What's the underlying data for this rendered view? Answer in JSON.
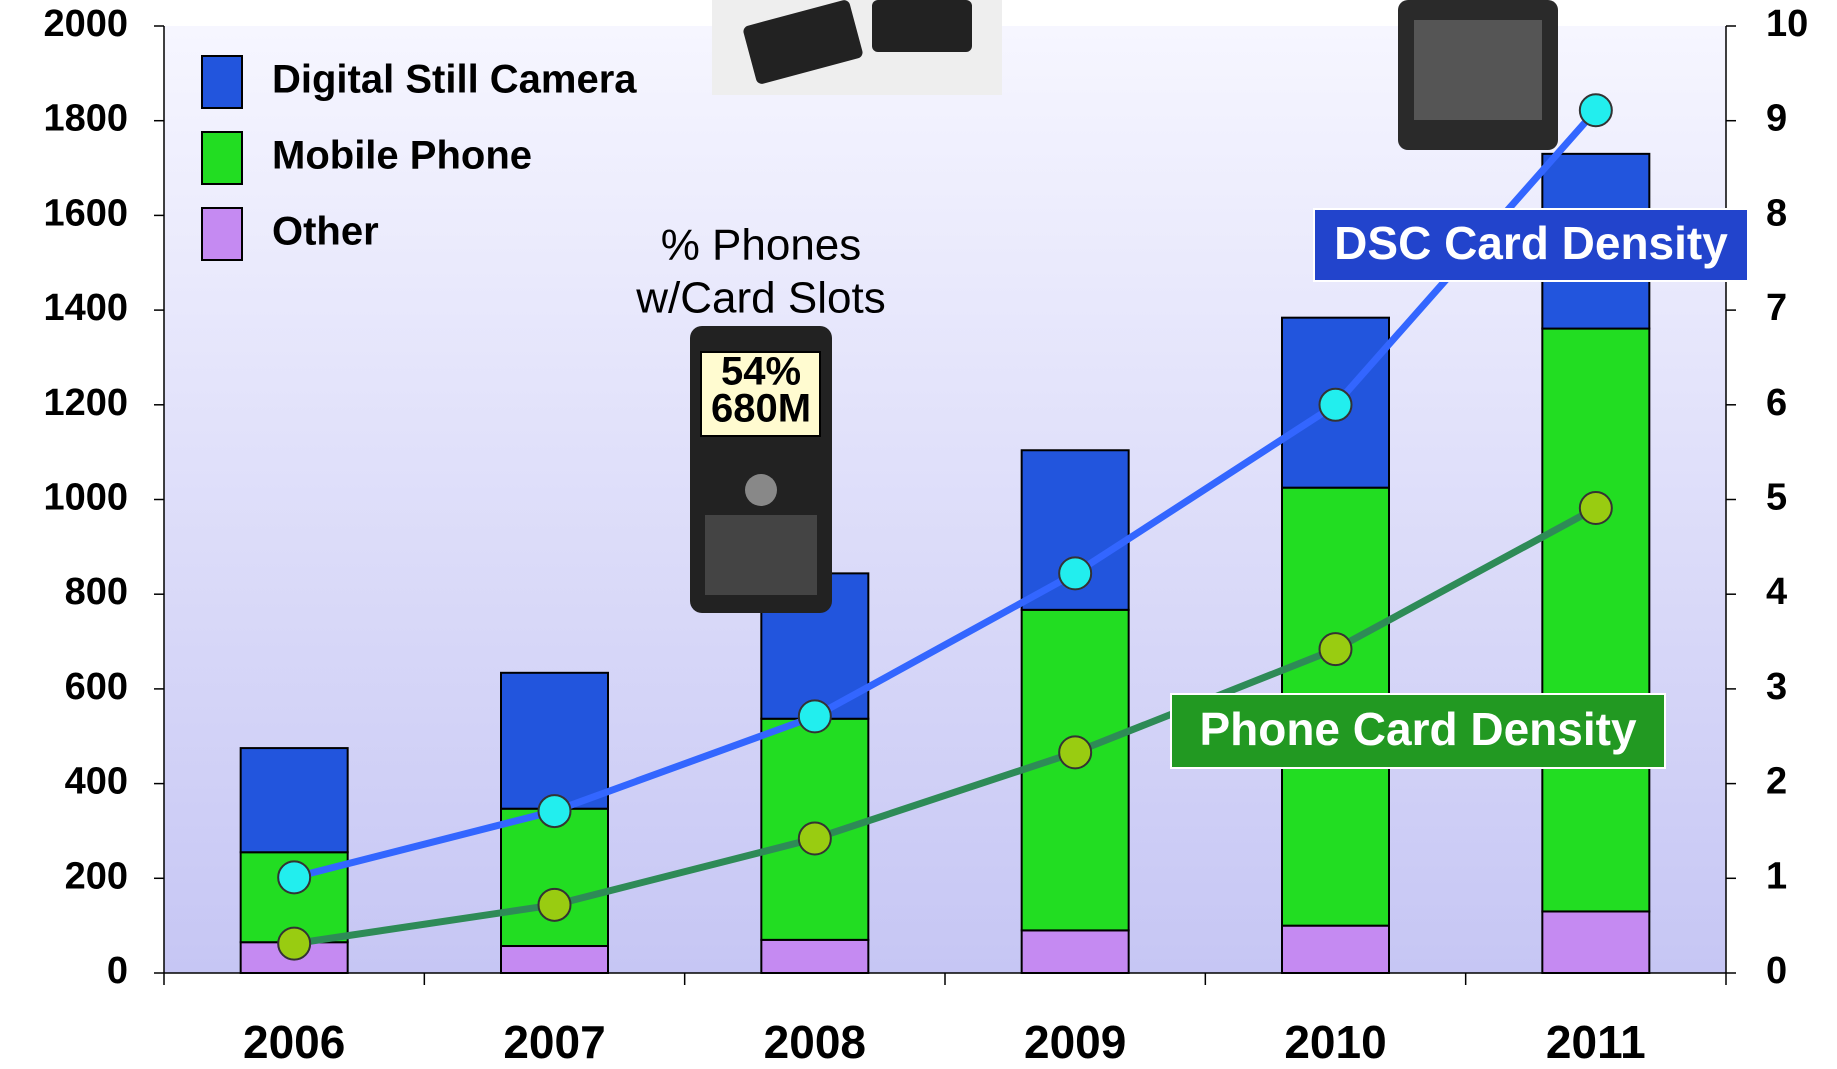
{
  "chart_data": {
    "type": "bar",
    "stacked": true,
    "categories": [
      "2006",
      "2007",
      "2008",
      "2009",
      "2010",
      "2011"
    ],
    "series": [
      {
        "name": "Other",
        "type": "bar",
        "color": "#c58af2",
        "values": [
          65,
          57,
          70,
          90,
          100,
          130
        ]
      },
      {
        "name": "Mobile Phone",
        "type": "bar",
        "color": "#22dd22",
        "values": [
          190,
          290,
          467,
          677,
          925,
          1231
        ]
      },
      {
        "name": "Digital Still Camera",
        "type": "bar",
        "color": "#2255dd",
        "values": [
          220,
          287,
          307,
          337,
          359,
          369
        ]
      },
      {
        "name": "DSC Card Density",
        "type": "line",
        "axis": "y2",
        "color": "#3366ff",
        "marker_color": "#22eeee",
        "label_color": "#2244cc",
        "values": [
          1.01,
          1.71,
          2.71,
          4.22,
          6.0,
          9.11
        ]
      },
      {
        "name": "Phone Card Density",
        "type": "line",
        "axis": "y2",
        "color": "#2e8b57",
        "marker_color": "#99cc11",
        "label_color": "#229922",
        "values": [
          0.31,
          0.72,
          1.42,
          2.33,
          3.42,
          4.91
        ]
      }
    ],
    "ylim": [
      0,
      2000
    ],
    "yticks": [
      0,
      200,
      400,
      600,
      800,
      1000,
      1200,
      1400,
      1600,
      1800,
      2000
    ],
    "y2lim": [
      0,
      10
    ],
    "y2ticks": [
      0,
      1,
      2,
      3,
      4,
      5,
      6,
      7,
      8,
      9,
      10
    ],
    "legend": "top-left",
    "annotations": {
      "heading": [
        "% Phones",
        "w/Card Slots"
      ],
      "share": "54%",
      "units": "680M"
    }
  }
}
